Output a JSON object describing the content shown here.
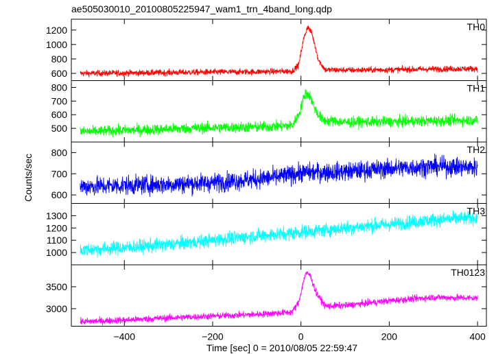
{
  "figure": {
    "title": "ae505030010_20100805225947_wam1_trn_4band_long.qdp",
    "xlabel": "Time [sec] 0 = 2010/08/05 22:59:47",
    "ylabel": "Counts/sec"
  },
  "chart_data": {
    "type": "line",
    "title": "ae505030010_20100805225947_wam1_trn_4band_long.qdp",
    "xlabel": "Time [sec] 0 = 2010/08/05 22:59:47",
    "ylabel": "Counts/sec",
    "xlim": [
      -520,
      420
    ],
    "xticks": [
      -400,
      -200,
      0,
      200,
      400
    ],
    "x_range": [
      -500,
      400
    ],
    "panels": [
      {
        "name": "TH0",
        "color": "#ff0000",
        "ylim": [
          500,
          1350
        ],
        "yticks": [
          600,
          800,
          1000,
          1200
        ],
        "profile": [
          [
            -500,
            600
          ],
          [
            -400,
            605
          ],
          [
            -300,
            612
          ],
          [
            -200,
            618
          ],
          [
            -100,
            622
          ],
          [
            -20,
            630
          ],
          [
            -5,
            720
          ],
          [
            5,
            1050
          ],
          [
            15,
            1250
          ],
          [
            25,
            1150
          ],
          [
            40,
            780
          ],
          [
            55,
            650
          ],
          [
            100,
            645
          ],
          [
            200,
            650
          ],
          [
            300,
            660
          ],
          [
            400,
            665
          ]
        ],
        "noise": 30
      },
      {
        "name": "TH1",
        "color": "#00ff00",
        "ylim": [
          400,
          850
        ],
        "yticks": [
          500,
          600,
          700,
          800
        ],
        "profile": [
          [
            -500,
            475
          ],
          [
            -400,
            485
          ],
          [
            -300,
            495
          ],
          [
            -200,
            505
          ],
          [
            -100,
            510
          ],
          [
            -20,
            520
          ],
          [
            -5,
            600
          ],
          [
            10,
            760
          ],
          [
            20,
            740
          ],
          [
            35,
            620
          ],
          [
            50,
            560
          ],
          [
            100,
            545
          ],
          [
            200,
            548
          ],
          [
            300,
            555
          ],
          [
            400,
            560
          ]
        ],
        "noise": 28
      },
      {
        "name": "TH2",
        "color": "#0000ff",
        "ylim": [
          560,
          850
        ],
        "yticks": [
          600,
          700,
          800
        ],
        "profile": [
          [
            -500,
            640
          ],
          [
            -400,
            645
          ],
          [
            -300,
            650
          ],
          [
            -200,
            658
          ],
          [
            -100,
            675
          ],
          [
            -50,
            685
          ],
          [
            0,
            705
          ],
          [
            100,
            710
          ],
          [
            200,
            725
          ],
          [
            300,
            735
          ],
          [
            400,
            730
          ]
        ],
        "noise": 32
      },
      {
        "name": "TH3",
        "color": "#00ffff",
        "ylim": [
          900,
          1400
        ],
        "yticks": [
          1000,
          1100,
          1200,
          1300
        ],
        "profile": [
          [
            -500,
            1020
          ],
          [
            -400,
            1040
          ],
          [
            -300,
            1065
          ],
          [
            -200,
            1100
          ],
          [
            -100,
            1135
          ],
          [
            0,
            1165
          ],
          [
            100,
            1200
          ],
          [
            200,
            1230
          ],
          [
            300,
            1265
          ],
          [
            400,
            1285
          ]
        ],
        "noise": 40
      },
      {
        "name": "TH0123",
        "color": "#ff00ff",
        "ylim": [
          2600,
          4000
        ],
        "yticks": [
          3000,
          3500
        ],
        "profile": [
          [
            -500,
            2700
          ],
          [
            -400,
            2740
          ],
          [
            -300,
            2790
          ],
          [
            -200,
            2830
          ],
          [
            -100,
            2870
          ],
          [
            -20,
            2920
          ],
          [
            -5,
            3150
          ],
          [
            10,
            3800
          ],
          [
            20,
            3780
          ],
          [
            35,
            3350
          ],
          [
            55,
            3060
          ],
          [
            100,
            3070
          ],
          [
            200,
            3180
          ],
          [
            300,
            3260
          ],
          [
            400,
            3240
          ]
        ],
        "noise": 55
      }
    ]
  }
}
